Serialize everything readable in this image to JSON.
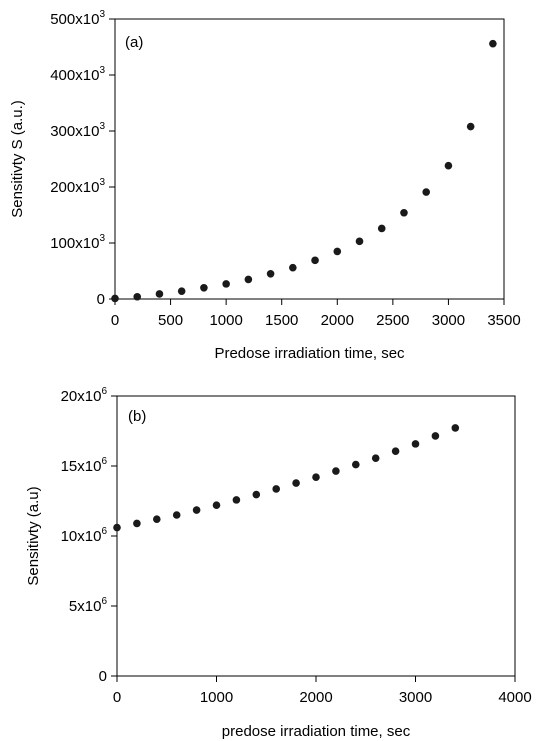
{
  "chart_data": [
    {
      "type": "scatter",
      "panel_label": "(a)",
      "xlabel": "Predose irradiation time, sec",
      "ylabel": "Sensitivty S (a.u.)",
      "xlim": [
        0,
        3500
      ],
      "ylim": [
        0,
        500000
      ],
      "x_ticks": [
        {
          "value": 0,
          "label": "0"
        },
        {
          "value": 500,
          "label": "500"
        },
        {
          "value": 1000,
          "label": "1000"
        },
        {
          "value": 1500,
          "label": "1500"
        },
        {
          "value": 2000,
          "label": "2000"
        },
        {
          "value": 2500,
          "label": "2500"
        },
        {
          "value": 3000,
          "label": "3000"
        },
        {
          "value": 3500,
          "label": "3500"
        }
      ],
      "y_ticks": [
        {
          "value": 0,
          "label": "0",
          "sup": ""
        },
        {
          "value": 100000,
          "label": "100x10",
          "sup": "3"
        },
        {
          "value": 200000,
          "label": "200x10",
          "sup": "3"
        },
        {
          "value": 300000,
          "label": "300x10",
          "sup": "3"
        },
        {
          "value": 400000,
          "label": "400x10",
          "sup": "3"
        },
        {
          "value": 500000,
          "label": "500x10",
          "sup": "3"
        }
      ],
      "x": [
        0,
        200,
        400,
        600,
        800,
        1000,
        1200,
        1400,
        1600,
        1800,
        2000,
        2200,
        2400,
        2600,
        2800,
        3000,
        3200,
        3400
      ],
      "y": [
        1000,
        4000,
        9000,
        14000,
        20000,
        27000,
        35000,
        45000,
        56000,
        69000,
        85000,
        103000,
        126000,
        154000,
        191000,
        238000,
        308000,
        456000
      ],
      "grid": false,
      "legend": "none"
    },
    {
      "type": "scatter",
      "panel_label": "(b)",
      "xlabel": "predose irradiation time, sec",
      "ylabel": "Sensitivty (a.u)",
      "xlim": [
        0,
        4000
      ],
      "ylim": [
        0,
        20000000
      ],
      "x_ticks": [
        {
          "value": 0,
          "label": "0"
        },
        {
          "value": 1000,
          "label": "1000"
        },
        {
          "value": 2000,
          "label": "2000"
        },
        {
          "value": 3000,
          "label": "3000"
        },
        {
          "value": 4000,
          "label": "4000"
        }
      ],
      "y_ticks": [
        {
          "value": 0,
          "label": "0",
          "sup": ""
        },
        {
          "value": 5000000,
          "label": "5x10",
          "sup": "6"
        },
        {
          "value": 10000000,
          "label": "10x10",
          "sup": "6"
        },
        {
          "value": 15000000,
          "label": "15x10",
          "sup": "6"
        },
        {
          "value": 20000000,
          "label": "20x10",
          "sup": "6"
        }
      ],
      "x": [
        0,
        200,
        400,
        600,
        800,
        1000,
        1200,
        1400,
        1600,
        1800,
        2000,
        2200,
        2400,
        2600,
        2800,
        3000,
        3200,
        3400
      ],
      "y": [
        10600000,
        10900000,
        11200000,
        11500000,
        11850000,
        12200000,
        12580000,
        12960000,
        13360000,
        13780000,
        14200000,
        14640000,
        15100000,
        15560000,
        16060000,
        16580000,
        17150000,
        17720000
      ],
      "grid": false,
      "legend": "none"
    }
  ],
  "colors": {
    "marker": "#1a1a1a",
    "axis": "#000000",
    "background": "#ffffff"
  }
}
